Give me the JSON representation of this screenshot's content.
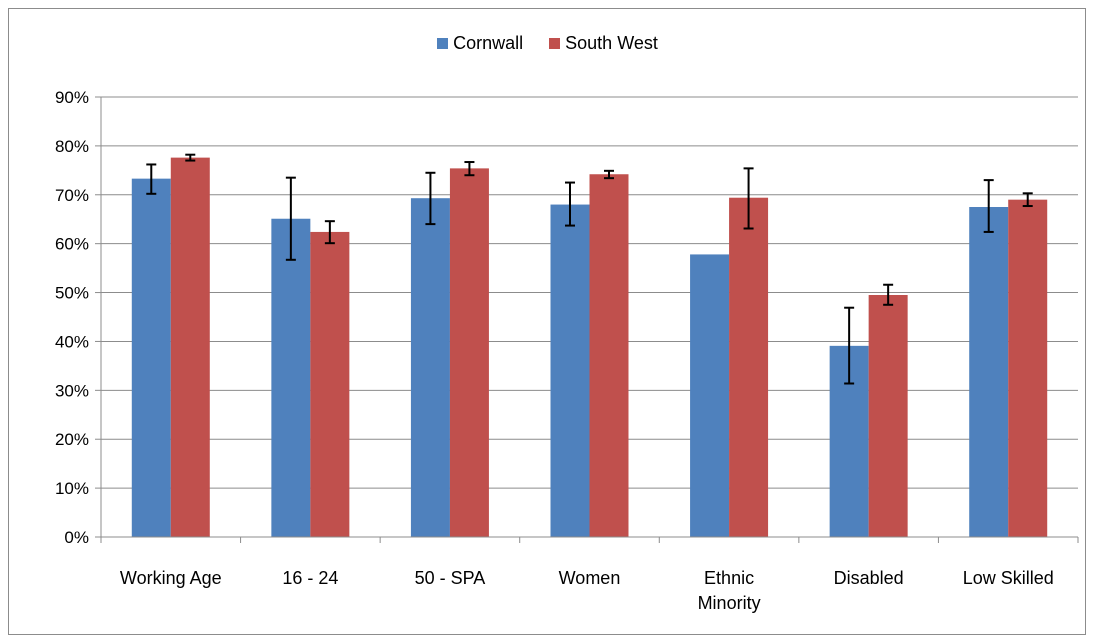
{
  "chart_data": {
    "type": "bar",
    "title": "",
    "xlabel": "",
    "ylabel": "",
    "categories": [
      "Working Age",
      "16 - 24",
      "50 - SPA",
      "Women",
      "Ethnic Minority",
      "Disabled",
      "Low Skilled"
    ],
    "category_lines": [
      [
        "Working Age"
      ],
      [
        "16 - 24"
      ],
      [
        "50 - SPA"
      ],
      [
        "Women"
      ],
      [
        "Ethnic",
        "Minority"
      ],
      [
        "Disabled"
      ],
      [
        "Low Skilled"
      ]
    ],
    "ylim": [
      0,
      0.9
    ],
    "yticks": [
      "0%",
      "10%",
      "20%",
      "30%",
      "40%",
      "50%",
      "60%",
      "70%",
      "80%",
      "90%"
    ],
    "grid": true,
    "legend_position": "top",
    "series": [
      {
        "name": "Cornwall",
        "color": "#4f81bd",
        "values": [
          0.733,
          0.651,
          0.693,
          0.68,
          0.578,
          0.391,
          0.675
        ],
        "errors": [
          [
            0.702,
            0.762
          ],
          [
            0.567,
            0.735
          ],
          [
            0.64,
            0.745
          ],
          [
            0.637,
            0.725
          ],
          null,
          [
            0.314,
            0.469
          ],
          [
            0.624,
            0.73
          ]
        ]
      },
      {
        "name": "South West",
        "color": "#c0504d",
        "values": [
          0.776,
          0.624,
          0.754,
          0.742,
          0.694,
          0.495,
          0.69
        ],
        "errors": [
          [
            0.77,
            0.782
          ],
          [
            0.601,
            0.646
          ],
          [
            0.74,
            0.767
          ],
          [
            0.734,
            0.749
          ],
          [
            0.631,
            0.754
          ],
          [
            0.475,
            0.516
          ],
          [
            0.677,
            0.703
          ]
        ]
      }
    ]
  }
}
